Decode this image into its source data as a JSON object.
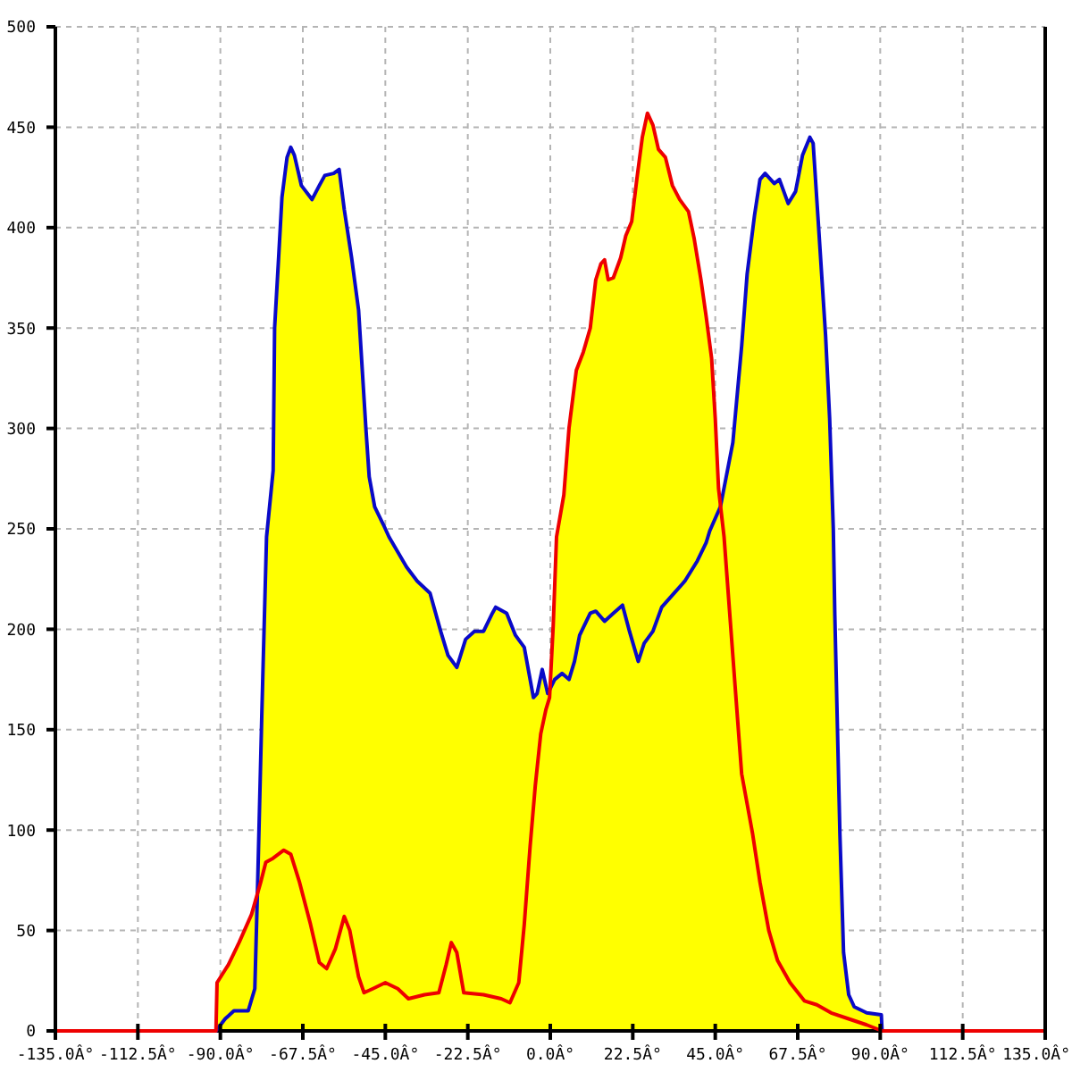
{
  "chart_data": {
    "type": "area",
    "xlim": [
      -135,
      135
    ],
    "ylim": [
      0,
      500
    ],
    "xticks": [
      {
        "value": -135,
        "label": "-135.0Â°"
      },
      {
        "value": -112.5,
        "label": "-112.5Â°"
      },
      {
        "value": -90,
        "label": "-90.0Â°"
      },
      {
        "value": -67.5,
        "label": "-67.5Â°"
      },
      {
        "value": -45,
        "label": "-45.0Â°"
      },
      {
        "value": -22.5,
        "label": "-22.5Â°"
      },
      {
        "value": 0,
        "label": "0.0Â°"
      },
      {
        "value": 22.5,
        "label": "22.5Â°"
      },
      {
        "value": 45,
        "label": "45.0Â°"
      },
      {
        "value": 67.5,
        "label": "67.5Â°"
      },
      {
        "value": 90,
        "label": "90.0Â°"
      },
      {
        "value": 112.5,
        "label": "112.5Â°"
      },
      {
        "value": 135,
        "label": "135.0Â°"
      }
    ],
    "yticks": [
      0,
      50,
      100,
      150,
      200,
      250,
      300,
      350,
      400,
      450,
      500
    ],
    "grid": true,
    "line_style": "solid",
    "series": [
      {
        "type": "line",
        "color": "#ee0000",
        "x": [
          -135,
          -91.2,
          -90.9,
          -87.8,
          -84.9,
          -81.5,
          -79.0,
          -77.6,
          -75.6,
          -72.7,
          -70.8,
          -68.4,
          -65.4,
          -63.0,
          -61.0,
          -58.6,
          -56.2,
          -54.7,
          -52.3,
          -50.8,
          -48.4,
          -45.0,
          -41.6,
          -38.7,
          -34.3,
          -30.4,
          -28.4,
          -27.0,
          -25.5,
          -23.6,
          -18.2,
          -13.4,
          -11.0,
          -8.6,
          -7.1,
          -5.5,
          -4.1,
          -2.6,
          -1.2,
          -0.2,
          0.8,
          1.7,
          3.7,
          5.1,
          7.1,
          9.0,
          10.9,
          12.4,
          13.8,
          14.8,
          15.8,
          17.2,
          19.2,
          20.6,
          22.2,
          23.6,
          25.1,
          26.5,
          28.0,
          29.5,
          31.4,
          33.3,
          35.3,
          37.7,
          39.2,
          41.1,
          42.5,
          44.0,
          45.0,
          45.9,
          47.4,
          50.4,
          52.2,
          55.2,
          57.2,
          59.6,
          62.0,
          65.4,
          69.3,
          72.7,
          76.6,
          81.4,
          86.3,
          90.5,
          135
        ],
        "values": [
          0,
          0,
          24,
          33,
          44,
          58,
          74,
          84,
          86,
          90,
          88,
          74,
          53,
          34,
          31,
          41,
          57,
          50,
          27,
          19,
          21,
          24,
          21,
          16,
          18,
          19,
          33,
          44,
          39,
          19,
          18,
          16,
          14,
          24,
          53,
          92,
          122,
          148,
          160,
          166,
          202,
          246,
          267,
          300,
          329,
          338,
          350,
          374,
          382,
          384,
          374,
          375,
          385,
          396,
          403,
          424,
          445,
          457,
          451,
          439,
          435,
          421,
          414,
          408,
          395,
          374,
          356,
          335,
          305,
          270,
          246,
          172,
          128,
          98,
          74,
          50,
          35,
          24,
          15,
          13,
          9,
          6,
          3,
          0,
          0
        ]
      },
      {
        "type": "line",
        "color": "#0a0ac8",
        "x": [
          -91.2,
          -88.7,
          -86.3,
          -82.4,
          -80.6,
          -79.9,
          -78.7,
          -77.4,
          -75.6,
          -75.2,
          -74.2,
          -73.2,
          -71.8,
          -70.8,
          -69.8,
          -67.9,
          -65.0,
          -63.0,
          -61.5,
          -59.1,
          -57.6,
          -56.2,
          -54.2,
          -52.3,
          -50.3,
          -49.4,
          -47.9,
          -45.5,
          -44.0,
          -39.2,
          -36.3,
          -32.8,
          -29.9,
          -27.9,
          -25.5,
          -23.1,
          -20.7,
          -18.2,
          -15.8,
          -14.9,
          -11.9,
          -9.5,
          -7.1,
          -4.6,
          -3.6,
          -2.2,
          -0.7,
          1.2,
          3.2,
          5.1,
          6.6,
          8.0,
          10.9,
          12.4,
          14.8,
          17.2,
          19.7,
          21.6,
          24.0,
          25.6,
          28.0,
          30.4,
          33.8,
          36.7,
          40.1,
          42.5,
          43.5,
          46.4,
          49.8,
          52.2,
          53.7,
          55.7,
          57.2,
          58.6,
          61.1,
          62.5,
          64.9,
          66.9,
          68.8,
          70.8,
          71.7,
          73.2,
          75.1,
          76.2,
          77.2,
          77.6,
          79.0,
          80.0,
          81.4,
          82.9,
          86.3,
          90.3,
          90.5
        ],
        "values": [
          0,
          6,
          10,
          10,
          21,
          68,
          157,
          246,
          279,
          350,
          382,
          415,
          435,
          440,
          436,
          421,
          414,
          421,
          426,
          427,
          429,
          409,
          385,
          359,
          300,
          276,
          261,
          252,
          246,
          231,
          224,
          218,
          199,
          187,
          181,
          195,
          199,
          199,
          208,
          211,
          208,
          197,
          191,
          166,
          168,
          180,
          168,
          175,
          178,
          175,
          184,
          197,
          208,
          209,
          204,
          208,
          212,
          199,
          184,
          193,
          199,
          211,
          218,
          224,
          234,
          243,
          249,
          261,
          293,
          341,
          377,
          406,
          424,
          427,
          422,
          424,
          412,
          418,
          436,
          445,
          442,
          400,
          346,
          305,
          250,
          208,
          98,
          39,
          18,
          12,
          9,
          8,
          0
        ]
      },
      {
        "color": "#ffff00",
        "x": [
          -91.2,
          -90.9,
          -87.8,
          -84.9,
          -81.5,
          -79.9,
          -78.7,
          -77.4,
          -75.6,
          -75.2,
          -74.2,
          -73.2,
          -71.8,
          -70.8,
          -69.8,
          -67.9,
          -65.0,
          -63.0,
          -61.5,
          -59.1,
          -57.6,
          -56.2,
          -54.2,
          -52.3,
          -50.3,
          -49.4,
          -47.9,
          -45.5,
          -44.0,
          -39.2,
          -36.3,
          -32.8,
          -29.9,
          -27.9,
          -25.5,
          -23.1,
          -20.7,
          -18.2,
          -15.8,
          -14.9,
          -11.9,
          -9.5,
          -7.1,
          -4.6,
          -3.6,
          -2.2,
          -0.7,
          -0.1,
          0.8,
          1.7,
          3.7,
          5.1,
          7.1,
          9.0,
          10.9,
          12.4,
          13.8,
          14.8,
          15.8,
          17.2,
          19.2,
          20.6,
          22.2,
          23.6,
          25.1,
          26.5,
          28.0,
          29.5,
          31.4,
          33.3,
          35.3,
          37.7,
          39.2,
          41.1,
          42.5,
          44.0,
          45.0,
          45.9,
          46.4,
          49.8,
          52.2,
          53.7,
          55.7,
          57.2,
          58.6,
          61.1,
          62.5,
          64.9,
          66.9,
          68.8,
          70.8,
          71.7,
          73.2,
          75.1,
          76.2,
          77.2,
          77.6,
          79.0,
          80.0,
          81.4,
          82.9,
          86.3,
          90.3,
          90.5
        ],
        "values": [
          0,
          24,
          33,
          44,
          58,
          68,
          157,
          246,
          279,
          350,
          382,
          415,
          435,
          440,
          436,
          421,
          414,
          421,
          426,
          427,
          429,
          409,
          385,
          359,
          300,
          276,
          261,
          252,
          246,
          231,
          224,
          218,
          199,
          187,
          181,
          195,
          199,
          199,
          208,
          211,
          208,
          197,
          191,
          166,
          168,
          180,
          168,
          170,
          202,
          246,
          267,
          300,
          329,
          338,
          350,
          374,
          382,
          384,
          374,
          375,
          385,
          396,
          403,
          424,
          445,
          457,
          451,
          439,
          435,
          421,
          414,
          408,
          395,
          374,
          356,
          335,
          305,
          270,
          262,
          293,
          341,
          377,
          406,
          424,
          427,
          422,
          424,
          412,
          418,
          436,
          445,
          442,
          400,
          346,
          305,
          250,
          208,
          98,
          39,
          18,
          12,
          9,
          8,
          0
        ]
      }
    ]
  }
}
